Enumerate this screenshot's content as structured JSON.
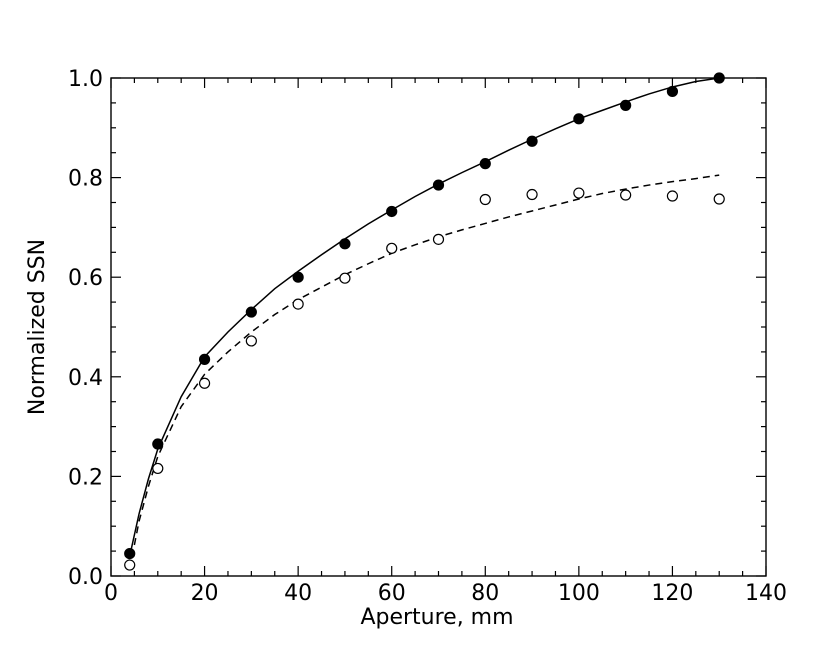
{
  "chart_data": {
    "type": "scatter",
    "title": "",
    "xlabel": "Aperture, mm",
    "ylabel": "Normalized SSN",
    "xlim": [
      0,
      140
    ],
    "ylim": [
      0.0,
      1.0
    ],
    "x_ticks": [
      "0",
      "20",
      "40",
      "60",
      "80",
      "100",
      "120",
      "140"
    ],
    "y_ticks": [
      "0.0",
      "0.2",
      "0.4",
      "0.6",
      "0.8",
      "1.0"
    ],
    "grid": false,
    "legend": "none",
    "series": [
      {
        "marker": "filled-circle",
        "x": [
          4,
          10,
          20,
          30,
          40,
          50,
          60,
          70,
          80,
          90,
          100,
          110,
          120,
          130
        ],
        "y": [
          0.045,
          0.265,
          0.435,
          0.53,
          0.6,
          0.667,
          0.732,
          0.785,
          0.828,
          0.873,
          0.918,
          0.945,
          0.973,
          1.0
        ]
      },
      {
        "marker": "open-circle",
        "x": [
          4,
          10,
          20,
          30,
          40,
          50,
          60,
          70,
          80,
          90,
          100,
          110,
          120,
          130
        ],
        "y": [
          0.022,
          0.216,
          0.387,
          0.472,
          0.546,
          0.598,
          0.658,
          0.676,
          0.756,
          0.766,
          0.769,
          0.765,
          0.763,
          0.757
        ]
      }
    ],
    "fits": [
      {
        "style": "solid",
        "x": [
          4,
          6,
          8,
          10,
          15,
          20,
          25,
          30,
          35,
          40,
          45,
          50,
          55,
          60,
          65,
          70,
          75,
          80,
          85,
          90,
          95,
          100,
          105,
          110,
          115,
          120,
          125,
          130
        ],
        "y": [
          0.04,
          0.125,
          0.195,
          0.255,
          0.36,
          0.44,
          0.49,
          0.535,
          0.577,
          0.612,
          0.645,
          0.677,
          0.707,
          0.735,
          0.762,
          0.787,
          0.81,
          0.832,
          0.855,
          0.877,
          0.898,
          0.918,
          0.935,
          0.952,
          0.968,
          0.982,
          0.993,
          1.0
        ]
      },
      {
        "style": "dashed",
        "x": [
          4,
          6,
          8,
          10,
          15,
          20,
          25,
          30,
          35,
          40,
          45,
          50,
          55,
          60,
          65,
          70,
          75,
          80,
          85,
          90,
          95,
          100,
          105,
          110,
          115,
          120,
          125,
          130
        ],
        "y": [
          0.015,
          0.11,
          0.18,
          0.24,
          0.34,
          0.405,
          0.45,
          0.49,
          0.525,
          0.555,
          0.58,
          0.605,
          0.627,
          0.648,
          0.665,
          0.681,
          0.695,
          0.708,
          0.721,
          0.733,
          0.745,
          0.757,
          0.768,
          0.777,
          0.785,
          0.792,
          0.798,
          0.805
        ]
      }
    ]
  }
}
